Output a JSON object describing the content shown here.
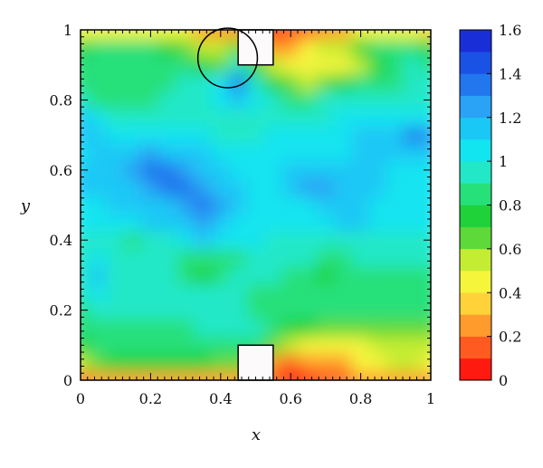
{
  "chart_data": {
    "type": "heatmap",
    "xlabel": "x",
    "ylabel": "y",
    "xlim": [
      0,
      1
    ],
    "ylim": [
      0,
      1
    ],
    "x_ticks": [
      "0",
      "0.2",
      "0.4",
      "0.6",
      "0.8",
      "1"
    ],
    "y_ticks": [
      "0",
      "0.2",
      "0.4",
      "0.6",
      "0.8",
      "1"
    ],
    "x_tick_values": [
      0,
      0.2,
      0.4,
      0.6,
      0.8,
      1
    ],
    "y_tick_values": [
      0,
      0.2,
      0.4,
      0.6,
      0.8,
      1
    ],
    "colorbar": {
      "range": [
        0,
        1.6
      ],
      "ticks": [
        "0",
        "0.2",
        "0.4",
        "0.6",
        "0.8",
        "1",
        "1.2",
        "1.4",
        "1.6"
      ],
      "tick_values": [
        0,
        0.2,
        0.4,
        0.6,
        0.8,
        1.0,
        1.2,
        1.4,
        1.6
      ],
      "colors": [
        "#ff1a10",
        "#ff5a20",
        "#ff9a2c",
        "#ffd23a",
        "#f5f53c",
        "#c4ec32",
        "#5ed93a",
        "#1fd23a",
        "#26e07a",
        "#22e8c8",
        "#12e4f0",
        "#1ac8f5",
        "#2aa2f5",
        "#2276ee",
        "#1a52e6",
        "#1a2ed8"
      ]
    },
    "obstacles": [
      {
        "x": [
          0.45,
          0.55
        ],
        "y": [
          0.9,
          1.0
        ]
      },
      {
        "x": [
          0.45,
          0.55
        ],
        "y": [
          0.0,
          0.1
        ]
      }
    ],
    "circle_marker": {
      "cx": 0.42,
      "cy": 0.92,
      "r": 0.085
    },
    "field_grid": {
      "x": [
        0,
        0.05,
        0.1,
        0.15,
        0.2,
        0.25,
        0.3,
        0.35,
        0.4,
        0.45,
        0.5,
        0.55,
        0.6,
        0.65,
        0.7,
        0.75,
        0.8,
        0.85,
        0.9,
        0.95,
        1.0
      ],
      "y": [
        0,
        0.05,
        0.1,
        0.15,
        0.2,
        0.25,
        0.3,
        0.35,
        0.4,
        0.45,
        0.5,
        0.55,
        0.6,
        0.65,
        0.7,
        0.75,
        0.8,
        0.85,
        0.9,
        0.95,
        1.0
      ],
      "values": [
        [
          0.15,
          0.2,
          0.3,
          0.3,
          0.3,
          0.3,
          0.3,
          0.3,
          0.3,
          0.3,
          0.3,
          0.1,
          0.05,
          0.05,
          0.1,
          0.15,
          0.2,
          0.25,
          0.3,
          0.3,
          0.25
        ],
        [
          0.5,
          0.7,
          0.75,
          0.75,
          0.75,
          0.75,
          0.75,
          0.75,
          0.7,
          0.7,
          0.7,
          0.2,
          0.15,
          0.2,
          0.25,
          0.3,
          0.4,
          0.45,
          0.5,
          0.5,
          0.45
        ],
        [
          0.75,
          0.8,
          0.8,
          0.8,
          0.8,
          0.8,
          0.8,
          0.8,
          0.8,
          0.8,
          0.8,
          0.7,
          0.5,
          0.45,
          0.45,
          0.4,
          0.45,
          0.5,
          0.55,
          0.55,
          0.5
        ],
        [
          0.85,
          0.85,
          0.85,
          0.8,
          0.8,
          0.8,
          0.85,
          0.9,
          0.9,
          0.9,
          0.9,
          0.85,
          0.75,
          0.75,
          0.7,
          0.7,
          0.7,
          0.7,
          0.7,
          0.7,
          0.7
        ],
        [
          0.85,
          0.9,
          0.9,
          0.9,
          0.9,
          0.9,
          0.9,
          0.9,
          0.9,
          0.9,
          0.85,
          0.85,
          0.85,
          0.8,
          0.8,
          0.85,
          0.85,
          0.85,
          0.85,
          0.85,
          0.85
        ],
        [
          0.9,
          1.0,
          0.9,
          0.9,
          0.9,
          0.9,
          0.9,
          0.9,
          0.9,
          0.9,
          0.85,
          0.85,
          0.8,
          0.85,
          0.85,
          0.85,
          0.85,
          0.85,
          0.85,
          0.85,
          0.85
        ],
        [
          0.9,
          1.15,
          0.95,
          0.9,
          0.9,
          0.9,
          0.8,
          0.75,
          0.8,
          0.9,
          0.9,
          0.9,
          0.85,
          0.8,
          0.75,
          0.8,
          0.85,
          0.85,
          0.85,
          0.85,
          0.85
        ],
        [
          0.95,
          1.0,
          0.95,
          0.9,
          0.9,
          0.9,
          0.85,
          0.8,
          0.8,
          0.85,
          0.9,
          0.9,
          0.9,
          0.9,
          0.85,
          0.85,
          0.9,
          0.9,
          0.9,
          0.9,
          0.9
        ],
        [
          0.95,
          0.95,
          0.9,
          0.85,
          0.9,
          0.95,
          1.05,
          1.1,
          1.0,
          1.0,
          1.0,
          0.95,
          0.95,
          0.9,
          0.95,
          0.95,
          0.95,
          0.95,
          0.9,
          0.9,
          0.9
        ],
        [
          1.0,
          1.0,
          1.05,
          1.05,
          1.1,
          1.15,
          1.2,
          1.25,
          1.2,
          1.05,
          1.0,
          1.05,
          1.0,
          1.0,
          1.05,
          1.1,
          1.1,
          1.05,
          1.05,
          1.05,
          1.05
        ],
        [
          1.05,
          1.05,
          1.1,
          1.1,
          1.15,
          1.2,
          1.25,
          1.3,
          1.25,
          1.1,
          1.05,
          1.05,
          1.05,
          1.05,
          1.1,
          1.1,
          1.1,
          1.05,
          1.05,
          1.05,
          1.05
        ],
        [
          1.1,
          1.1,
          1.15,
          1.2,
          1.25,
          1.3,
          1.3,
          1.25,
          1.2,
          1.1,
          1.05,
          1.05,
          1.2,
          1.25,
          1.25,
          1.15,
          1.1,
          1.1,
          1.05,
          1.05,
          1.05
        ],
        [
          1.1,
          1.15,
          1.2,
          1.25,
          1.3,
          1.3,
          1.25,
          1.2,
          1.1,
          1.05,
          1.05,
          1.05,
          1.15,
          1.2,
          1.15,
          1.1,
          1.1,
          1.1,
          1.05,
          1.05,
          1.05
        ],
        [
          1.05,
          1.1,
          1.15,
          1.2,
          1.25,
          1.2,
          1.15,
          1.1,
          1.0,
          1.0,
          1.0,
          1.05,
          1.05,
          1.05,
          1.05,
          1.05,
          1.1,
          1.1,
          1.15,
          1.2,
          1.2
        ],
        [
          1.2,
          1.1,
          1.0,
          1.0,
          1.05,
          1.05,
          1.05,
          1.0,
          0.95,
          0.95,
          0.95,
          1.0,
          1.0,
          1.0,
          1.0,
          1.05,
          1.1,
          1.1,
          1.2,
          1.3,
          1.25
        ],
        [
          1.15,
          1.0,
          0.9,
          0.9,
          0.9,
          0.95,
          0.95,
          0.95,
          0.9,
          0.9,
          0.9,
          0.95,
          0.95,
          0.95,
          0.95,
          1.0,
          1.0,
          1.0,
          1.05,
          1.05,
          1.05
        ],
        [
          0.9,
          0.85,
          0.85,
          0.85,
          0.85,
          0.9,
          0.9,
          0.95,
          1.0,
          1.1,
          1.0,
          0.9,
          0.85,
          0.85,
          0.9,
          0.9,
          0.9,
          0.9,
          0.9,
          0.9,
          0.9
        ],
        [
          0.85,
          0.85,
          0.85,
          0.85,
          0.85,
          0.85,
          0.9,
          0.9,
          1.0,
          1.3,
          0.95,
          0.75,
          0.65,
          0.6,
          0.65,
          0.75,
          0.85,
          0.85,
          0.85,
          0.9,
          0.9
        ],
        [
          0.85,
          0.85,
          0.85,
          0.85,
          0.85,
          0.85,
          0.8,
          0.75,
          0.7,
          0.9,
          0.75,
          0.5,
          0.45,
          0.4,
          0.4,
          0.45,
          0.6,
          0.75,
          0.85,
          0.9,
          0.85
        ],
        [
          0.75,
          0.8,
          0.8,
          0.8,
          0.8,
          0.75,
          0.7,
          0.55,
          0.6,
          0.7,
          0.6,
          0.2,
          0.25,
          0.4,
          0.5,
          0.6,
          0.75,
          0.85,
          0.8,
          0.8,
          0.75
        ],
        [
          0.4,
          0.45,
          0.45,
          0.45,
          0.45,
          0.45,
          0.4,
          0.3,
          0.3,
          0.3,
          0.3,
          0.05,
          0.1,
          0.15,
          0.2,
          0.3,
          0.4,
          0.45,
          0.4,
          0.4,
          0.35
        ]
      ]
    }
  }
}
